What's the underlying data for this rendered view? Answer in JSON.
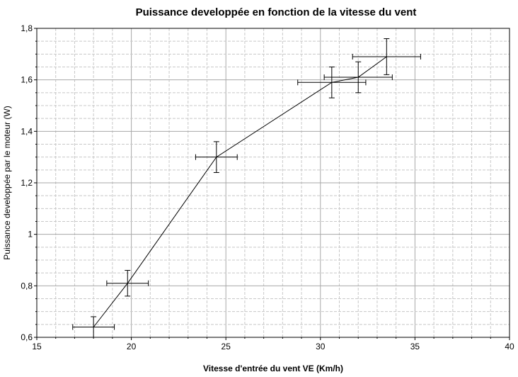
{
  "chart_data": {
    "type": "scatter",
    "title": "Puissance developpée en fonction de la vitesse du vent",
    "xlabel": "Vitesse d'entrée du vent VE (Km/h)",
    "ylabel": "Puissance developpée par le moteur (W)",
    "xlim": [
      15,
      40
    ],
    "ylim": [
      0.6,
      1.8
    ],
    "x_ticks": [
      "15",
      "20",
      "25",
      "30",
      "35",
      "40"
    ],
    "y_ticks": [
      "0,6",
      "0,8",
      "1",
      "1,2",
      "1,4",
      "1,6",
      "1,8"
    ],
    "grid": true,
    "connected": true,
    "error_bars": true,
    "series": [
      {
        "points": [
          {
            "x": 18.0,
            "y": 0.64,
            "xerr": 1.1,
            "yerr": 0.04
          },
          {
            "x": 19.8,
            "y": 0.81,
            "xerr": 1.1,
            "yerr": 0.05
          },
          {
            "x": 24.5,
            "y": 1.3,
            "xerr": 1.1,
            "yerr": 0.06
          },
          {
            "x": 30.6,
            "y": 1.59,
            "xerr": 1.8,
            "yerr": 0.06
          },
          {
            "x": 32.0,
            "y": 1.61,
            "xerr": 1.8,
            "yerr": 0.06
          },
          {
            "x": 33.5,
            "y": 1.69,
            "xerr": 1.8,
            "yerr": 0.07
          }
        ]
      }
    ]
  }
}
